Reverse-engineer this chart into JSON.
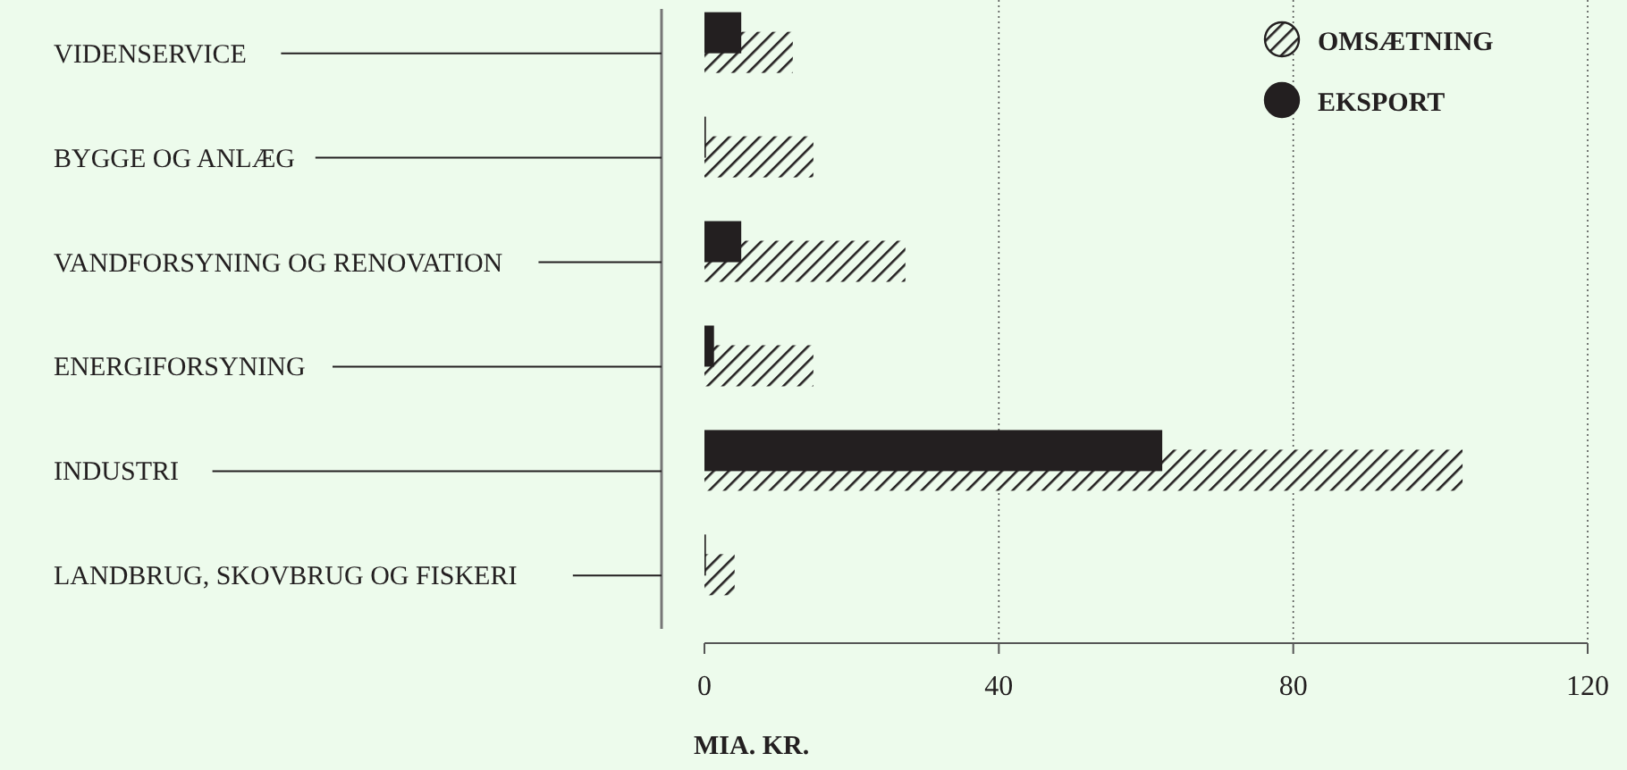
{
  "chart_data": {
    "type": "bar",
    "orientation": "horizontal",
    "xlabel": "MIA. KR.",
    "categories": [
      "VIDENSERVICE",
      "BYGGE OG ANLÆG",
      "VANDFORSYNING OG RENOVATION",
      "ENERGIFORSYNING",
      "INDUSTRI",
      "LANDBRUG, SKOVBRUG OG FISKERI"
    ],
    "series": [
      {
        "name": "OMSÆTNING",
        "color": "#231f20",
        "values": [
          12,
          14.8,
          27.3,
          14.8,
          103,
          4.1
        ]
      },
      {
        "name": "EKSPORT",
        "color": "#231f20",
        "values": [
          5,
          0.2,
          5,
          1.3,
          62.2,
          0.2
        ]
      }
    ],
    "xlim": [
      0,
      120
    ],
    "xticks": [
      0,
      40,
      80,
      120
    ],
    "grid": "x",
    "legend": "top right"
  }
}
